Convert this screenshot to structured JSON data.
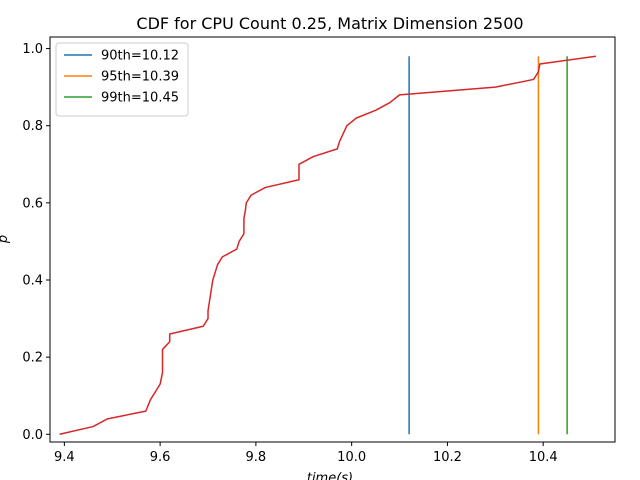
{
  "chart_data": {
    "type": "line",
    "title": "CDF for CPU Count 0.25, Matrix Dimension 2500",
    "xlabel": "time(s)",
    "ylabel": "p",
    "xlim": [
      9.37,
      10.55
    ],
    "ylim": [
      -0.02,
      1.03
    ],
    "grid": false,
    "legend_position": "top-left",
    "x_ticks": [
      9.4,
      9.6,
      9.8,
      10.0,
      10.2,
      10.4
    ],
    "x_tick_labels": [
      "9.4",
      "9.6",
      "9.8",
      "10.0",
      "10.2",
      "10.4"
    ],
    "y_ticks": [
      0.0,
      0.2,
      0.4,
      0.6,
      0.8,
      1.0
    ],
    "y_tick_labels": [
      "0.0",
      "0.2",
      "0.4",
      "0.6",
      "0.8",
      "1.0"
    ],
    "percentile_lines": [
      {
        "name": "90th=10.12",
        "x": 10.12,
        "y0": 0.0,
        "y1": 0.98,
        "color": "#1f77b4"
      },
      {
        "name": "95th=10.39",
        "x": 10.39,
        "y0": 0.0,
        "y1": 0.98,
        "color": "#ff7f0e"
      },
      {
        "name": "99th=10.45",
        "x": 10.45,
        "y0": 0.0,
        "y1": 0.98,
        "color": "#2ca02c"
      }
    ],
    "cdf_series": {
      "color": "#d62728",
      "x": [
        9.39,
        9.46,
        9.49,
        9.57,
        9.58,
        9.59,
        9.6,
        9.605,
        9.605,
        9.62,
        9.62,
        9.69,
        9.7,
        9.7,
        9.705,
        9.71,
        9.715,
        9.72,
        9.73,
        9.76,
        9.765,
        9.775,
        9.775,
        9.778,
        9.78,
        9.79,
        9.82,
        9.89,
        9.89,
        9.92,
        9.97,
        9.975,
        9.99,
        10.01,
        10.05,
        10.08,
        10.1,
        10.3,
        10.38,
        10.39,
        10.393,
        10.51
      ],
      "y": [
        0.0,
        0.02,
        0.04,
        0.06,
        0.09,
        0.11,
        0.13,
        0.16,
        0.22,
        0.24,
        0.26,
        0.28,
        0.3,
        0.32,
        0.36,
        0.4,
        0.42,
        0.44,
        0.46,
        0.48,
        0.5,
        0.52,
        0.56,
        0.58,
        0.6,
        0.62,
        0.64,
        0.66,
        0.7,
        0.72,
        0.74,
        0.76,
        0.8,
        0.82,
        0.84,
        0.86,
        0.88,
        0.9,
        0.92,
        0.94,
        0.96,
        0.98
      ]
    }
  }
}
